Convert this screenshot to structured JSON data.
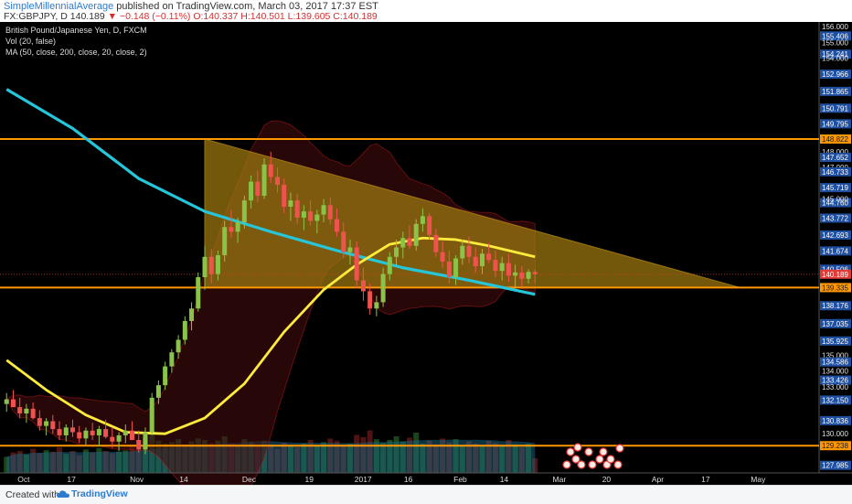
{
  "header": {
    "author": "SimpleMillennialAverage",
    "published": " published on TradingView.com, March 03, 2017 17:37 EST",
    "symbol": "FX:GBPJPY, D",
    "last": "140.189",
    "change": "▼ −0.148 (−0.11%)",
    "ohlc": "O:140.337  H:140.501  L:139.605  C:140.189"
  },
  "legend": {
    "title": "British Pound/Japanese Yen, D, FXCM",
    "vol": "Vol (20, false)",
    "ma": "MA (50, close, 200, close, 20, close, 2)"
  },
  "footer": {
    "created": "Created with",
    "brand": "TradingView"
  },
  "colors": {
    "background": "#000000",
    "triangle_fill": "#a07a10",
    "resistance": "#ff9800",
    "ma50": "#ffeb3b",
    "ma200": "#26c6da",
    "up": "#8bc34a",
    "down": "#ef5350",
    "bb_band": "#b71c1c",
    "price_label_blue": "#1e4fa0",
    "price_label_orange": "#ff9800",
    "price_label_red": "#e53935"
  },
  "chart_data": {
    "type": "candlestick",
    "symbol": "GBPJPY",
    "timeframe": "D",
    "ylim": [
      127.5,
      156.3
    ],
    "price_axis_labels": [
      {
        "value": 156.0,
        "label": "156.000",
        "style": "plain"
      },
      {
        "value": 155.406,
        "label": "155.406",
        "style": "blue"
      },
      {
        "value": 155.0,
        "label": "155.000",
        "style": "plain"
      },
      {
        "value": 154.241,
        "label": "154.241",
        "style": "blue"
      },
      {
        "value": 154.0,
        "label": "154.000",
        "style": "plain"
      },
      {
        "value": 152.966,
        "label": "152.966",
        "style": "blue"
      },
      {
        "value": 151.865,
        "label": "151.865",
        "style": "blue"
      },
      {
        "value": 150.791,
        "label": "150.791",
        "style": "blue"
      },
      {
        "value": 149.795,
        "label": "149.795",
        "style": "blue"
      },
      {
        "value": 148.822,
        "label": "148.822",
        "style": "orange"
      },
      {
        "value": 148.0,
        "label": "148.000",
        "style": "plain"
      },
      {
        "value": 147.652,
        "label": "147.652",
        "style": "blue"
      },
      {
        "value": 147.0,
        "label": "147.000",
        "style": "plain"
      },
      {
        "value": 146.733,
        "label": "146.733",
        "style": "blue"
      },
      {
        "value": 145.719,
        "label": "145.719",
        "style": "blue"
      },
      {
        "value": 144.76,
        "label": "144.760",
        "style": "blue"
      },
      {
        "value": 145.0,
        "label": "145.000",
        "style": "plain"
      },
      {
        "value": 143.772,
        "label": "143.772",
        "style": "blue"
      },
      {
        "value": 142.693,
        "label": "142.693",
        "style": "blue"
      },
      {
        "value": 141.674,
        "label": "141.674",
        "style": "blue"
      },
      {
        "value": 140.506,
        "label": "140.506",
        "style": "blue"
      },
      {
        "value": 140.189,
        "label": "140.189",
        "style": "red"
      },
      {
        "value": 139.335,
        "label": "139.335",
        "style": "orange"
      },
      {
        "value": 138.176,
        "label": "138.176",
        "style": "blue"
      },
      {
        "value": 137.035,
        "label": "137.035",
        "style": "blue"
      },
      {
        "value": 135.925,
        "label": "135.925",
        "style": "blue"
      },
      {
        "value": 135.0,
        "label": "135.000",
        "style": "plain"
      },
      {
        "value": 134.586,
        "label": "134.586",
        "style": "blue"
      },
      {
        "value": 134.0,
        "label": "134.000",
        "style": "plain"
      },
      {
        "value": 133.426,
        "label": "133.426",
        "style": "blue"
      },
      {
        "value": 133.0,
        "label": "133.000",
        "style": "plain"
      },
      {
        "value": 132.15,
        "label": "132.150",
        "style": "blue"
      },
      {
        "value": 130.836,
        "label": "130.836",
        "style": "blue"
      },
      {
        "value": 130.0,
        "label": "130.000",
        "style": "plain"
      },
      {
        "value": 129.238,
        "label": "129.238",
        "style": "orange"
      },
      {
        "value": 127.985,
        "label": "127.985",
        "style": "blue"
      }
    ],
    "time_labels": [
      "Oct",
      "17",
      "Nov",
      "14",
      "Dec",
      "19",
      "2017",
      "16",
      "Feb",
      "14",
      "Mar",
      "20",
      "Apr",
      "17",
      "May"
    ],
    "time_label_x": [
      0,
      7.5,
      17,
      24.5,
      34,
      43.5,
      51,
      58.5,
      66,
      73,
      81,
      88.5,
      96,
      103.5,
      111
    ],
    "x_range": [
      -1,
      123
    ],
    "horizontal_lines": [
      148.822,
      139.335,
      129.238
    ],
    "triangle": {
      "apex_left": [
        30,
        148.822
      ],
      "bottom_left": [
        30,
        139.335
      ],
      "right": [
        111,
        139.335
      ],
      "upper_end": [
        111,
        139.335
      ]
    },
    "candles_ohlc": [
      [
        0,
        131.9,
        132.6,
        131.4,
        132.2
      ],
      [
        1,
        132.2,
        132.8,
        131.8,
        131.7
      ],
      [
        2,
        131.7,
        132.3,
        131.0,
        131.3
      ],
      [
        3,
        131.3,
        131.9,
        130.7,
        131.6
      ],
      [
        4,
        131.6,
        132.0,
        130.9,
        131.0
      ],
      [
        5,
        131.0,
        131.5,
        130.2,
        130.5
      ],
      [
        6,
        130.5,
        131.0,
        129.9,
        130.8
      ],
      [
        7,
        130.8,
        131.2,
        130.0,
        130.3
      ],
      [
        8,
        130.3,
        130.8,
        129.6,
        129.9
      ],
      [
        9,
        129.9,
        130.6,
        129.5,
        130.4
      ],
      [
        10,
        130.4,
        130.9,
        129.8,
        130.1
      ],
      [
        11,
        130.1,
        130.5,
        129.4,
        129.7
      ],
      [
        12,
        129.7,
        130.4,
        129.3,
        130.2
      ],
      [
        13,
        130.2,
        130.7,
        129.6,
        129.9
      ],
      [
        14,
        129.9,
        130.5,
        129.2,
        130.3
      ],
      [
        15,
        130.3,
        130.9,
        129.7,
        129.8
      ],
      [
        16,
        129.8,
        130.4,
        129.1,
        129.5
      ],
      [
        17,
        129.5,
        130.1,
        128.9,
        129.9
      ],
      [
        18,
        129.9,
        130.6,
        129.4,
        130.2
      ],
      [
        19,
        130.2,
        130.8,
        129.6,
        129.6
      ],
      [
        20,
        129.6,
        130.2,
        128.8,
        129.0
      ],
      [
        21,
        129.0,
        130.4,
        128.7,
        130.1
      ],
      [
        22,
        130.1,
        132.6,
        129.9,
        132.3
      ],
      [
        23,
        132.3,
        133.4,
        131.9,
        133.1
      ],
      [
        24,
        133.1,
        134.6,
        132.8,
        134.3
      ],
      [
        25,
        134.3,
        135.4,
        133.9,
        135.2
      ],
      [
        26,
        135.2,
        136.3,
        134.8,
        136.0
      ],
      [
        27,
        136.0,
        137.5,
        135.7,
        137.2
      ],
      [
        28,
        137.2,
        138.4,
        136.6,
        138.0
      ],
      [
        29,
        138.0,
        140.3,
        137.8,
        140.0
      ],
      [
        30,
        140.0,
        142.0,
        139.2,
        141.3
      ],
      [
        31,
        141.3,
        141.8,
        139.6,
        140.2
      ],
      [
        32,
        140.2,
        141.7,
        139.8,
        141.4
      ],
      [
        33,
        141.4,
        143.6,
        141.0,
        143.2
      ],
      [
        34,
        143.2,
        144.3,
        142.5,
        142.9
      ],
      [
        35,
        142.9,
        143.8,
        142.2,
        143.5
      ],
      [
        36,
        143.5,
        145.2,
        143.1,
        144.9
      ],
      [
        37,
        144.9,
        146.5,
        144.4,
        146.1
      ],
      [
        38,
        146.1,
        146.8,
        144.8,
        145.2
      ],
      [
        39,
        145.2,
        147.6,
        145.0,
        147.2
      ],
      [
        40,
        147.2,
        148.0,
        146.0,
        146.4
      ],
      [
        41,
        146.4,
        147.0,
        145.4,
        145.9
      ],
      [
        42,
        145.9,
        146.3,
        144.1,
        144.5
      ],
      [
        43,
        144.5,
        145.4,
        143.6,
        144.9
      ],
      [
        44,
        144.9,
        145.3,
        143.4,
        143.8
      ],
      [
        45,
        143.8,
        144.6,
        143.0,
        144.2
      ],
      [
        46,
        144.2,
        144.9,
        143.3,
        143.6
      ],
      [
        47,
        143.6,
        144.3,
        142.8,
        144.0
      ],
      [
        48,
        144.0,
        145.0,
        143.5,
        144.6
      ],
      [
        49,
        144.6,
        145.1,
        143.4,
        143.7
      ],
      [
        50,
        143.7,
        144.4,
        142.6,
        142.9
      ],
      [
        51,
        142.9,
        143.5,
        141.2,
        141.6
      ],
      [
        52,
        141.6,
        142.4,
        140.8,
        141.9
      ],
      [
        53,
        141.9,
        142.3,
        139.3,
        139.8
      ],
      [
        54,
        139.8,
        140.6,
        138.5,
        139.1
      ],
      [
        55,
        139.1,
        139.6,
        137.6,
        138.0
      ],
      [
        56,
        138.0,
        138.8,
        137.5,
        138.4
      ],
      [
        57,
        138.4,
        140.6,
        138.1,
        140.2
      ],
      [
        58,
        140.2,
        141.6,
        139.8,
        141.3
      ],
      [
        59,
        141.3,
        142.4,
        140.7,
        141.9
      ],
      [
        60,
        141.9,
        142.9,
        141.2,
        142.5
      ],
      [
        61,
        142.5,
        143.3,
        141.8,
        142.0
      ],
      [
        62,
        142.0,
        143.7,
        141.7,
        143.4
      ],
      [
        63,
        143.4,
        144.4,
        142.9,
        143.9
      ],
      [
        64,
        143.9,
        144.1,
        142.4,
        142.7
      ],
      [
        65,
        142.7,
        143.1,
        141.3,
        141.6
      ],
      [
        66,
        141.6,
        142.3,
        140.6,
        141.0
      ],
      [
        67,
        141.0,
        141.7,
        139.6,
        140.0
      ],
      [
        68,
        140.0,
        141.4,
        139.5,
        141.2
      ],
      [
        69,
        141.2,
        142.4,
        140.8,
        142.0
      ],
      [
        70,
        142.0,
        142.6,
        140.9,
        141.3
      ],
      [
        71,
        141.3,
        141.9,
        140.3,
        140.7
      ],
      [
        72,
        140.7,
        141.8,
        140.2,
        141.5
      ],
      [
        73,
        141.5,
        142.2,
        140.9,
        141.1
      ],
      [
        74,
        141.1,
        141.7,
        140.0,
        140.4
      ],
      [
        75,
        140.4,
        141.3,
        139.8,
        140.9
      ],
      [
        76,
        140.9,
        141.5,
        139.7,
        140.1
      ],
      [
        77,
        140.1,
        140.8,
        139.3,
        140.3
      ],
      [
        78,
        140.3,
        140.7,
        139.4,
        139.9
      ],
      [
        79,
        139.9,
        140.5,
        139.6,
        140.337
      ],
      [
        80,
        140.337,
        140.501,
        139.605,
        140.189
      ]
    ],
    "ma200": [
      [
        0,
        152.0
      ],
      [
        10,
        149.5
      ],
      [
        20,
        146.3
      ],
      [
        30,
        144.2
      ],
      [
        40,
        142.9
      ],
      [
        50,
        141.7
      ],
      [
        60,
        140.6
      ],
      [
        70,
        139.8
      ],
      [
        80,
        138.9
      ]
    ],
    "ma50": [
      [
        0,
        134.7
      ],
      [
        6,
        132.8
      ],
      [
        12,
        131.2
      ],
      [
        18,
        130.1
      ],
      [
        24,
        130.0
      ],
      [
        30,
        131.0
      ],
      [
        36,
        133.2
      ],
      [
        42,
        136.5
      ],
      [
        48,
        139.2
      ],
      [
        53,
        140.8
      ],
      [
        58,
        142.1
      ],
      [
        63,
        142.5
      ],
      [
        68,
        142.4
      ],
      [
        73,
        142.0
      ],
      [
        80,
        141.3
      ]
    ],
    "volume_scale": [
      0,
      100
    ],
    "volume_bars_note": "relative volume 0-100",
    "volume": [
      22,
      28,
      30,
      25,
      33,
      27,
      31,
      29,
      35,
      26,
      30,
      24,
      32,
      28,
      34,
      30,
      27,
      29,
      31,
      38,
      36,
      48,
      55,
      44,
      40,
      42,
      46,
      39,
      43,
      47,
      45,
      41,
      44,
      50,
      40,
      38,
      46,
      42,
      36,
      44,
      39,
      33,
      41,
      37,
      35,
      40,
      45,
      38,
      42,
      47,
      44,
      36,
      40,
      52,
      49,
      58,
      46,
      41,
      45,
      50,
      43,
      48,
      55,
      40,
      44,
      39,
      47,
      42,
      46,
      38,
      43,
      40,
      36,
      44,
      41,
      37,
      45,
      39,
      35,
      40,
      20
    ]
  }
}
